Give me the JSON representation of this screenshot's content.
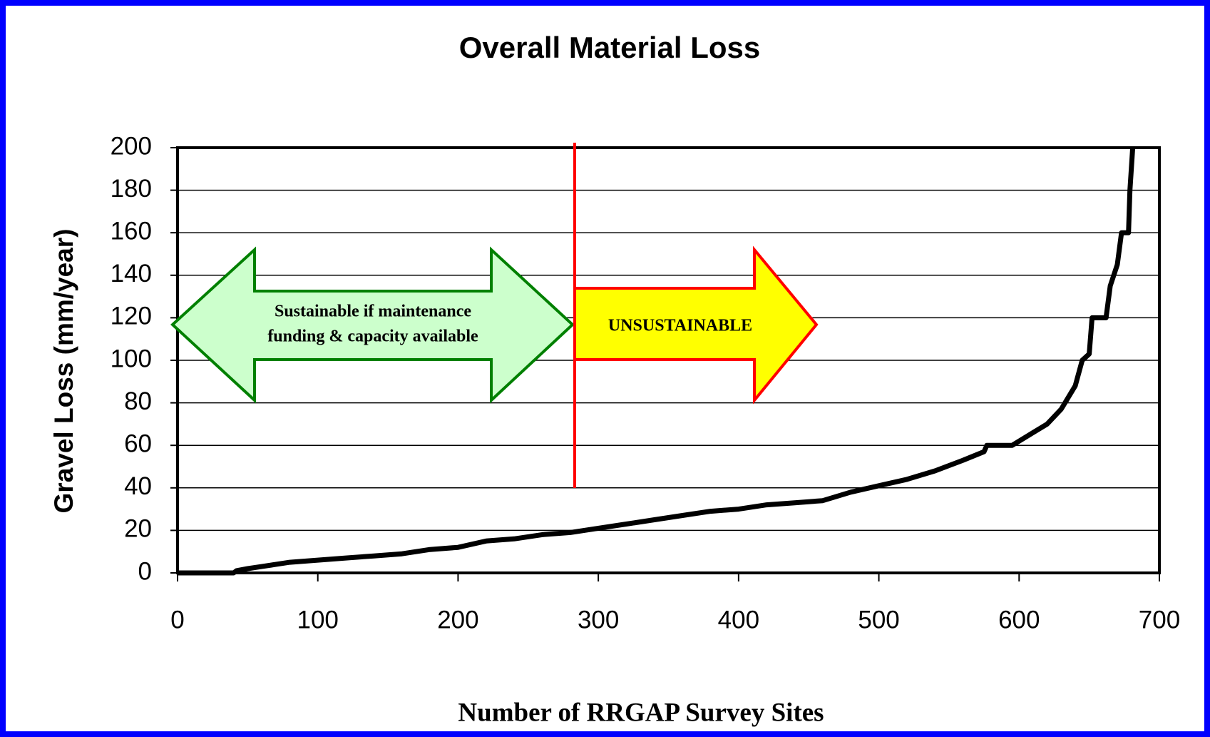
{
  "chart_data": {
    "type": "line",
    "title": "Overall Material Loss",
    "x_label": "Number of RRGAP Survey Sites",
    "y_label": "Gravel Loss (mm/year)",
    "x": [
      0,
      40,
      42,
      50,
      60,
      70,
      80,
      100,
      120,
      140,
      160,
      180,
      200,
      220,
      240,
      260,
      280,
      300,
      320,
      340,
      360,
      380,
      400,
      420,
      440,
      460,
      480,
      500,
      520,
      540,
      560,
      575,
      577,
      595,
      610,
      620,
      630,
      640,
      645,
      650,
      652,
      662,
      665,
      670,
      673,
      678,
      679,
      681
    ],
    "series": [
      {
        "name": "Gravel Loss",
        "color": "#000000",
        "values": [
          0,
          0,
          1,
          2,
          3,
          4,
          5,
          6,
          7,
          8,
          9,
          11,
          12,
          15,
          16,
          18,
          19,
          21,
          23,
          25,
          27,
          29,
          30,
          32,
          33,
          34,
          38,
          41,
          44,
          48,
          53,
          57,
          60,
          60,
          66,
          70,
          77,
          88,
          100,
          103,
          120,
          120,
          135,
          145,
          160,
          160,
          180,
          200
        ]
      }
    ],
    "xlim": [
      0,
      700
    ],
    "xticks": [
      0,
      100,
      200,
      300,
      400,
      500,
      600,
      700
    ],
    "ylim": [
      0,
      200
    ],
    "yticks": [
      0,
      20,
      40,
      60,
      80,
      100,
      120,
      140,
      160,
      180,
      200
    ],
    "grid": true,
    "annotations": {
      "sustainable": [
        "Sustainable if maintenance",
        "funding & capacity available"
      ],
      "unsustainable": "UNSUSTAINABLE"
    }
  }
}
